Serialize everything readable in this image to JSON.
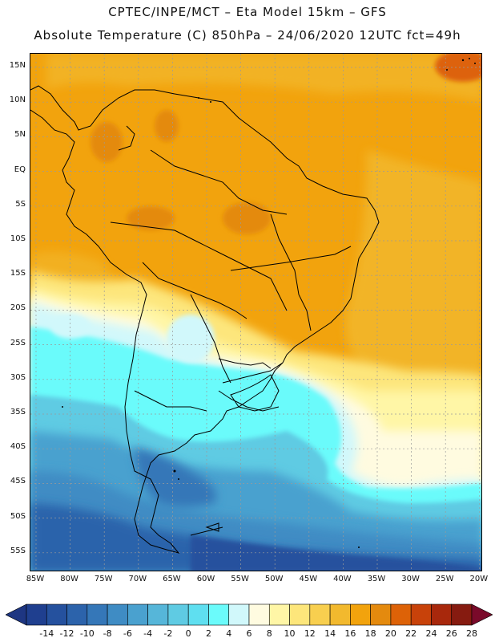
{
  "header": {
    "line1": "CPTEC/INPE/MCT –  Eta Model 15km – GFS",
    "line2": "Absolute Temperature (C) 850hPa – 24/06/2020 12UTC fct=49h"
  },
  "lat_labels": [
    "15N",
    "10N",
    "5N",
    "EQ",
    "5S",
    "10S",
    "15S",
    "20S",
    "25S",
    "30S",
    "35S",
    "40S",
    "45S",
    "50S",
    "55S"
  ],
  "lon_labels": [
    "85W",
    "80W",
    "75W",
    "70W",
    "65W",
    "60W",
    "55W",
    "50W",
    "45W",
    "40W",
    "35W",
    "30W",
    "25W",
    "20W"
  ],
  "colorbar": {
    "labels": [
      "-14",
      "-12",
      "-10",
      "-8",
      "-6",
      "-4",
      "-2",
      "0",
      "2",
      "4",
      "6",
      "8",
      "10",
      "12",
      "14",
      "16",
      "18",
      "20",
      "22",
      "24",
      "26",
      "28"
    ],
    "colors": [
      "#1f3f8f",
      "#25519e",
      "#2c63ab",
      "#3577b8",
      "#3f8cc4",
      "#4aa1cf",
      "#56b6d9",
      "#5fcbe3",
      "#5fdff0",
      "#6bfbfb",
      "#d1f8fb",
      "#fffbe0",
      "#fff6a6",
      "#fde67b",
      "#f8cf4f",
      "#f2b92e",
      "#f2a30d",
      "#e48a0e",
      "#dd6207",
      "#c8420a",
      "#a8280c",
      "#861b10"
    ],
    "under_color": "#1e3682",
    "over_color": "#7a0a2a"
  }
}
